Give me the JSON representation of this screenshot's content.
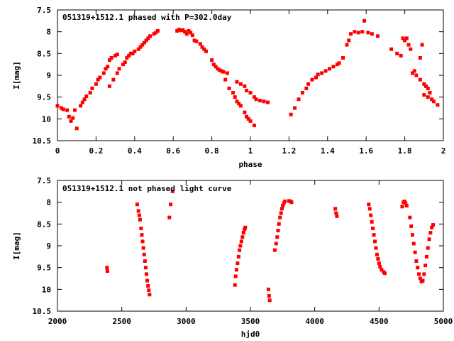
{
  "chart_data": [
    {
      "type": "scatter",
      "title": "051319+1512.1 phased with P=302.0day",
      "xlabel": "phase",
      "ylabel": "I[mag]",
      "xlim": [
        0,
        2
      ],
      "ylim": [
        10.5,
        7.5
      ],
      "y_inverted": true,
      "grid": false,
      "marker_color": "#ff0000",
      "x_ticks": [
        0,
        0.2,
        0.4,
        0.6,
        0.8,
        1,
        1.2,
        1.4,
        1.6,
        1.8,
        2
      ],
      "x_tick_labels": [
        "0",
        "0.2",
        "0.4",
        "0.6",
        "0.8",
        "1",
        "1.2",
        "1.4",
        "1.6",
        "1.8",
        "2"
      ],
      "y_ticks": [
        7.5,
        8,
        8.5,
        9,
        9.5,
        10,
        10.5
      ],
      "y_tick_labels": [
        "7.5",
        "8",
        "8.5",
        "9",
        "9.5",
        "10",
        "10.5"
      ],
      "points": [
        [
          0.0,
          9.7
        ],
        [
          0.02,
          9.75
        ],
        [
          0.03,
          9.78
        ],
        [
          0.05,
          9.8
        ],
        [
          0.06,
          9.95
        ],
        [
          0.07,
          10.05
        ],
        [
          0.08,
          9.98
        ],
        [
          0.09,
          9.8
        ],
        [
          0.1,
          10.22
        ],
        [
          0.12,
          9.7
        ],
        [
          0.13,
          9.62
        ],
        [
          0.14,
          9.55
        ],
        [
          0.15,
          9.48
        ],
        [
          0.17,
          9.4
        ],
        [
          0.18,
          9.3
        ],
        [
          0.2,
          9.2
        ],
        [
          0.21,
          9.1
        ],
        [
          0.22,
          9.05
        ],
        [
          0.24,
          8.95
        ],
        [
          0.25,
          8.85
        ],
        [
          0.26,
          8.8
        ],
        [
          0.27,
          8.65
        ],
        [
          0.28,
          8.6
        ],
        [
          0.3,
          8.55
        ],
        [
          0.31,
          8.52
        ],
        [
          0.27,
          9.25
        ],
        [
          0.29,
          9.1
        ],
        [
          0.31,
          8.95
        ],
        [
          0.32,
          8.85
        ],
        [
          0.34,
          8.75
        ],
        [
          0.35,
          8.7
        ],
        [
          0.36,
          8.6
        ],
        [
          0.37,
          8.55
        ],
        [
          0.38,
          8.5
        ],
        [
          0.39,
          8.5
        ],
        [
          0.4,
          8.45
        ],
        [
          0.42,
          8.4
        ],
        [
          0.43,
          8.35
        ],
        [
          0.44,
          8.3
        ],
        [
          0.45,
          8.25
        ],
        [
          0.46,
          8.2
        ],
        [
          0.47,
          8.15
        ],
        [
          0.48,
          8.1
        ],
        [
          0.5,
          8.05
        ],
        [
          0.51,
          8.02
        ],
        [
          0.52,
          7.98
        ],
        [
          0.62,
          7.98
        ],
        [
          0.63,
          7.95
        ],
        [
          0.64,
          7.97
        ],
        [
          0.65,
          7.96
        ],
        [
          0.66,
          8.0
        ],
        [
          0.67,
          8.05
        ],
        [
          0.68,
          7.98
        ],
        [
          0.69,
          8.02
        ],
        [
          0.7,
          8.08
        ],
        [
          0.71,
          8.2
        ],
        [
          0.72,
          8.22
        ],
        [
          0.74,
          8.28
        ],
        [
          0.75,
          8.35
        ],
        [
          0.76,
          8.4
        ],
        [
          0.77,
          8.45
        ],
        [
          0.8,
          8.65
        ],
        [
          0.81,
          8.75
        ],
        [
          0.82,
          8.8
        ],
        [
          0.83,
          8.85
        ],
        [
          0.84,
          8.88
        ],
        [
          0.85,
          8.9
        ],
        [
          0.86,
          8.92
        ],
        [
          0.88,
          8.95
        ],
        [
          0.87,
          9.1
        ],
        [
          0.89,
          9.3
        ],
        [
          0.91,
          9.4
        ],
        [
          0.92,
          9.5
        ],
        [
          0.93,
          9.6
        ],
        [
          0.94,
          9.65
        ],
        [
          0.95,
          9.7
        ],
        [
          0.97,
          9.85
        ],
        [
          0.98,
          9.95
        ],
        [
          0.99,
          10.0
        ],
        [
          1.0,
          10.05
        ],
        [
          1.02,
          10.15
        ],
        [
          0.93,
          9.15
        ],
        [
          0.95,
          9.2
        ],
        [
          0.97,
          9.25
        ],
        [
          0.98,
          9.35
        ],
        [
          1.0,
          9.4
        ],
        [
          1.02,
          9.5
        ],
        [
          1.03,
          9.55
        ],
        [
          1.05,
          9.58
        ],
        [
          1.07,
          9.6
        ],
        [
          1.09,
          9.62
        ],
        [
          1.21,
          9.9
        ],
        [
          1.23,
          9.75
        ],
        [
          1.25,
          9.55
        ],
        [
          1.27,
          9.4
        ],
        [
          1.29,
          9.3
        ],
        [
          1.3,
          9.2
        ],
        [
          1.32,
          9.1
        ],
        [
          1.34,
          9.05
        ],
        [
          1.35,
          8.98
        ],
        [
          1.37,
          8.95
        ],
        [
          1.39,
          8.9
        ],
        [
          1.41,
          8.85
        ],
        [
          1.43,
          8.8
        ],
        [
          1.45,
          8.75
        ],
        [
          1.46,
          8.72
        ],
        [
          1.48,
          8.6
        ],
        [
          1.5,
          8.3
        ],
        [
          1.51,
          8.2
        ],
        [
          1.52,
          8.05
        ],
        [
          1.54,
          8.0
        ],
        [
          1.56,
          8.02
        ],
        [
          1.58,
          8.0
        ],
        [
          1.59,
          7.75
        ],
        [
          1.61,
          8.02
        ],
        [
          1.63,
          8.05
        ],
        [
          1.66,
          8.1
        ],
        [
          1.73,
          8.4
        ],
        [
          1.76,
          8.5
        ],
        [
          1.78,
          8.55
        ],
        [
          1.79,
          8.15
        ],
        [
          1.8,
          8.2
        ],
        [
          1.81,
          8.15
        ],
        [
          1.82,
          8.3
        ],
        [
          1.83,
          8.4
        ],
        [
          1.84,
          8.95
        ],
        [
          1.85,
          8.9
        ],
        [
          1.86,
          9.0
        ],
        [
          1.88,
          9.1
        ],
        [
          1.9,
          9.2
        ],
        [
          1.91,
          9.25
        ],
        [
          1.92,
          9.3
        ],
        [
          1.93,
          9.4
        ],
        [
          1.94,
          9.55
        ],
        [
          1.95,
          9.6
        ],
        [
          1.97,
          9.68
        ],
        [
          1.9,
          9.45
        ],
        [
          1.92,
          9.5
        ],
        [
          1.88,
          8.6
        ],
        [
          1.89,
          8.3
        ]
      ]
    },
    {
      "type": "scatter",
      "title": "051319+1512.1 not phased light curve",
      "xlabel": "hjd0",
      "ylabel": "I[mag]",
      "xlim": [
        2000,
        5000
      ],
      "ylim": [
        10.5,
        7.5
      ],
      "y_inverted": true,
      "grid": false,
      "marker_color": "#ff0000",
      "x_ticks": [
        2000,
        2500,
        3000,
        3500,
        4000,
        4500,
        5000
      ],
      "x_tick_labels": [
        "2000",
        "2500",
        "3000",
        "3500",
        "4000",
        "4500",
        "5000"
      ],
      "y_ticks": [
        7.5,
        8,
        8.5,
        9,
        9.5,
        10,
        10.5
      ],
      "y_tick_labels": [
        "7.5",
        "8",
        "8.5",
        "9",
        "9.5",
        "10",
        "10.5"
      ],
      "points": [
        [
          2385,
          9.5
        ],
        [
          2388,
          9.58
        ],
        [
          2620,
          8.05
        ],
        [
          2630,
          8.2
        ],
        [
          2636,
          8.3
        ],
        [
          2642,
          8.4
        ],
        [
          2650,
          8.6
        ],
        [
          2656,
          8.75
        ],
        [
          2662,
          8.9
        ],
        [
          2668,
          9.05
        ],
        [
          2674,
          9.2
        ],
        [
          2680,
          9.35
        ],
        [
          2686,
          9.5
        ],
        [
          2692,
          9.65
        ],
        [
          2698,
          9.8
        ],
        [
          2704,
          9.92
        ],
        [
          2710,
          10.02
        ],
        [
          2716,
          10.12
        ],
        [
          2870,
          8.35
        ],
        [
          2880,
          8.05
        ],
        [
          2895,
          7.75
        ],
        [
          3380,
          9.9
        ],
        [
          3385,
          9.7
        ],
        [
          3392,
          9.55
        ],
        [
          3400,
          9.4
        ],
        [
          3408,
          9.25
        ],
        [
          3415,
          9.1
        ],
        [
          3422,
          9.0
        ],
        [
          3430,
          8.9
        ],
        [
          3438,
          8.8
        ],
        [
          3446,
          8.7
        ],
        [
          3454,
          8.62
        ],
        [
          3460,
          8.58
        ],
        [
          3640,
          10.0
        ],
        [
          3645,
          10.15
        ],
        [
          3650,
          10.25
        ],
        [
          3690,
          9.1
        ],
        [
          3700,
          8.95
        ],
        [
          3708,
          8.8
        ],
        [
          3715,
          8.65
        ],
        [
          3722,
          8.5
        ],
        [
          3730,
          8.35
        ],
        [
          3738,
          8.25
        ],
        [
          3745,
          8.15
        ],
        [
          3752,
          8.08
        ],
        [
          3760,
          8.02
        ],
        [
          3768,
          7.98
        ],
        [
          3800,
          7.97
        ],
        [
          3810,
          7.98
        ],
        [
          3820,
          8.0
        ],
        [
          4160,
          8.15
        ],
        [
          4166,
          8.25
        ],
        [
          4172,
          8.32
        ],
        [
          4420,
          8.05
        ],
        [
          4428,
          8.15
        ],
        [
          4436,
          8.3
        ],
        [
          4444,
          8.45
        ],
        [
          4452,
          8.6
        ],
        [
          4460,
          8.75
        ],
        [
          4468,
          8.9
        ],
        [
          4476,
          9.05
        ],
        [
          4484,
          9.2
        ],
        [
          4492,
          9.3
        ],
        [
          4500,
          9.4
        ],
        [
          4508,
          9.48
        ],
        [
          4520,
          9.55
        ],
        [
          4535,
          9.6
        ],
        [
          4545,
          9.63
        ],
        [
          4680,
          8.1
        ],
        [
          4690,
          8.0
        ],
        [
          4698,
          7.98
        ],
        [
          4706,
          8.02
        ],
        [
          4715,
          8.08
        ],
        [
          4740,
          8.35
        ],
        [
          4750,
          8.55
        ],
        [
          4760,
          8.75
        ],
        [
          4770,
          8.95
        ],
        [
          4780,
          9.15
        ],
        [
          4790,
          9.35
        ],
        [
          4800,
          9.5
        ],
        [
          4810,
          9.65
        ],
        [
          4820,
          9.75
        ],
        [
          4830,
          9.82
        ],
        [
          4840,
          9.8
        ],
        [
          4850,
          9.65
        ],
        [
          4860,
          9.45
        ],
        [
          4870,
          9.25
        ],
        [
          4880,
          9.05
        ],
        [
          4890,
          8.85
        ],
        [
          4900,
          8.7
        ],
        [
          4910,
          8.58
        ],
        [
          4920,
          8.52
        ]
      ]
    }
  ]
}
